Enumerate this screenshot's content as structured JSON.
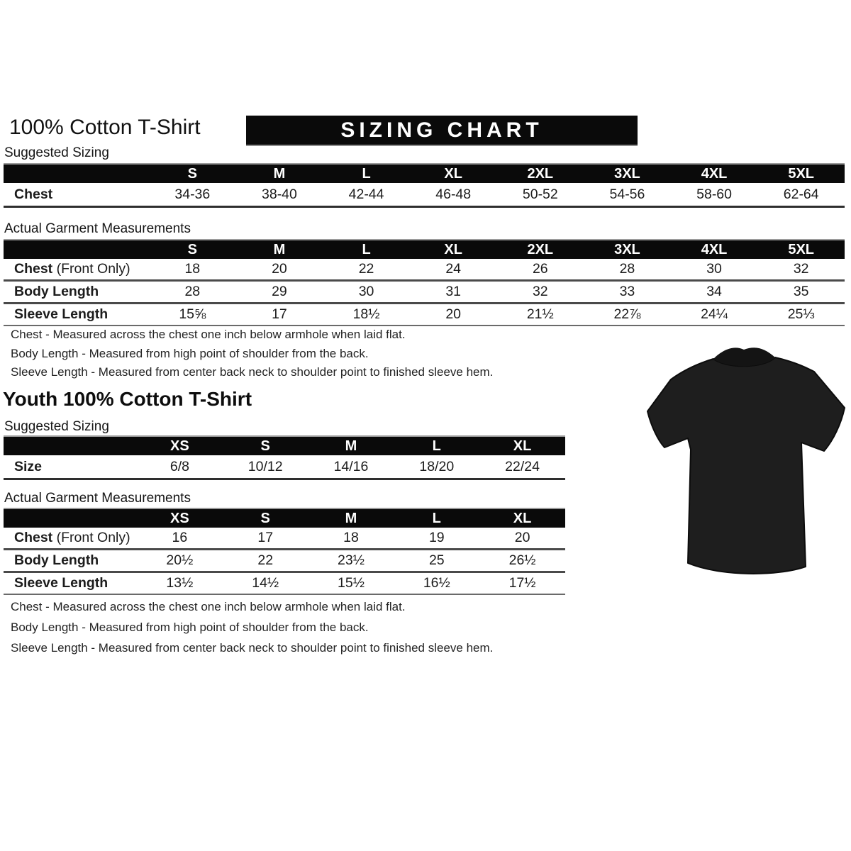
{
  "page": {
    "title": "100% Cotton T-Shirt",
    "banner": "SIZING CHART",
    "youth_title": "Youth 100% Cotton T-Shirt",
    "header_bar_color": "#0a0a0a",
    "tshirt_color": "#1e1e1e",
    "tshirt_collar_color": "#141414"
  },
  "adult": {
    "suggested_label": "Suggested Sizing",
    "suggested": {
      "columns": [
        "S",
        "M",
        "L",
        "XL",
        "2XL",
        "3XL",
        "4XL",
        "5XL"
      ],
      "rows": [
        {
          "label": "Chest",
          "suffix": "",
          "values": [
            "34-36",
            "38-40",
            "42-44",
            "46-48",
            "50-52",
            "54-56",
            "58-60",
            "62-64"
          ]
        }
      ]
    },
    "actual_label": "Actual Garment Measurements",
    "actual": {
      "columns": [
        "S",
        "M",
        "L",
        "XL",
        "2XL",
        "3XL",
        "4XL",
        "5XL"
      ],
      "rows": [
        {
          "label": "Chest",
          "suffix": " (Front Only)",
          "values": [
            "18",
            "20",
            "22",
            "24",
            "26",
            "28",
            "30",
            "32"
          ]
        },
        {
          "label": "Body Length",
          "suffix": "",
          "values": [
            "28",
            "29",
            "30",
            "31",
            "32",
            "33",
            "34",
            "35"
          ]
        },
        {
          "label": "Sleeve Length",
          "suffix": "",
          "values": [
            "15⅝",
            "17",
            "18½",
            "20",
            "21½",
            "22⅞",
            "24¼",
            "25⅓"
          ]
        }
      ]
    },
    "notes": [
      "Chest - Measured across the chest one inch below armhole when laid flat.",
      "Body Length - Measured from high point of shoulder from the back.",
      "Sleeve Length - Measured from center back neck to shoulder point to finished sleeve hem."
    ]
  },
  "youth": {
    "suggested_label": "Suggested Sizing",
    "suggested": {
      "columns": [
        "XS",
        "S",
        "M",
        "L",
        "XL"
      ],
      "rows": [
        {
          "label": "Size",
          "suffix": "",
          "values": [
            "6/8",
            "10/12",
            "14/16",
            "18/20",
            "22/24"
          ]
        }
      ]
    },
    "actual_label": "Actual Garment Measurements",
    "actual": {
      "columns": [
        "XS",
        "S",
        "M",
        "L",
        "XL"
      ],
      "rows": [
        {
          "label": "Chest",
          "suffix": " (Front Only)",
          "values": [
            "16",
            "17",
            "18",
            "19",
            "20"
          ]
        },
        {
          "label": "Body Length",
          "suffix": "",
          "values": [
            "20½",
            "22",
            "23½",
            "25",
            "26½"
          ]
        },
        {
          "label": "Sleeve Length",
          "suffix": "",
          "values": [
            "13½",
            "14½",
            "15½",
            "16½",
            "17½"
          ]
        }
      ]
    },
    "notes": [
      "Chest - Measured across the chest one inch below armhole when laid flat.",
      "Body Length - Measured from high point of shoulder from the back.",
      "Sleeve Length - Measured from center back neck to shoulder point to finished sleeve hem."
    ]
  }
}
